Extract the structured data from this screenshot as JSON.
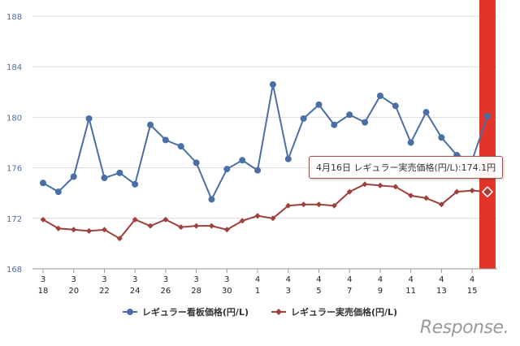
{
  "chart_data": {
    "type": "line",
    "title": "",
    "xlabel": "",
    "ylabel": "",
    "ylim": [
      168,
      188
    ],
    "yticks": [
      168,
      172,
      176,
      180,
      184,
      188
    ],
    "grid": true,
    "legend_position": "bottom",
    "x": [
      "3/18",
      "3/19",
      "3/20",
      "3/21",
      "3/22",
      "3/23",
      "3/24",
      "3/25",
      "3/26",
      "3/27",
      "3/28",
      "3/29",
      "3/30",
      "3/31",
      "4/1",
      "4/2",
      "4/3",
      "4/4",
      "4/5",
      "4/6",
      "4/7",
      "4/8",
      "4/9",
      "4/10",
      "4/11",
      "4/12",
      "4/13",
      "4/14",
      "4/15",
      "4/16"
    ],
    "xtick_labels": [
      [
        "3",
        "18"
      ],
      [
        "3",
        "20"
      ],
      [
        "3",
        "22"
      ],
      [
        "3",
        "24"
      ],
      [
        "3",
        "26"
      ],
      [
        "3",
        "28"
      ],
      [
        "3",
        "30"
      ],
      [
        "4",
        "1"
      ],
      [
        "4",
        "3"
      ],
      [
        "4",
        "5"
      ],
      [
        "4",
        "7"
      ],
      [
        "4",
        "9"
      ],
      [
        "4",
        "11"
      ],
      [
        "4",
        "13"
      ],
      [
        "4",
        "15"
      ]
    ],
    "series": [
      {
        "name": "レギュラー看板価格(円/L)",
        "color": "#4a6fa5",
        "marker": "circle",
        "values": [
          174.8,
          174.1,
          175.3,
          179.9,
          175.2,
          175.6,
          174.7,
          179.4,
          178.2,
          177.7,
          176.4,
          173.5,
          175.9,
          176.6,
          175.8,
          182.6,
          176.7,
          179.9,
          181.0,
          179.4,
          180.2,
          179.6,
          181.7,
          180.9,
          178.0,
          180.4,
          178.4,
          177.0,
          176.6,
          180.1
        ]
      },
      {
        "name": "レギュラー実売価格(円/L)",
        "color": "#9e403c",
        "marker": "diamond",
        "values": [
          171.9,
          171.2,
          171.1,
          171.0,
          171.1,
          170.4,
          171.9,
          171.4,
          171.9,
          171.3,
          171.4,
          171.4,
          171.1,
          171.8,
          172.2,
          172.0,
          173.0,
          173.1,
          173.1,
          173.0,
          174.1,
          174.7,
          174.6,
          174.5,
          173.8,
          173.6,
          173.1,
          174.1,
          174.2,
          174.1
        ]
      }
    ],
    "highlight_color": "#e3342a",
    "tooltip": "4月16日 レギュラー実売価格(円/L):174.1円"
  },
  "logo": "Response."
}
